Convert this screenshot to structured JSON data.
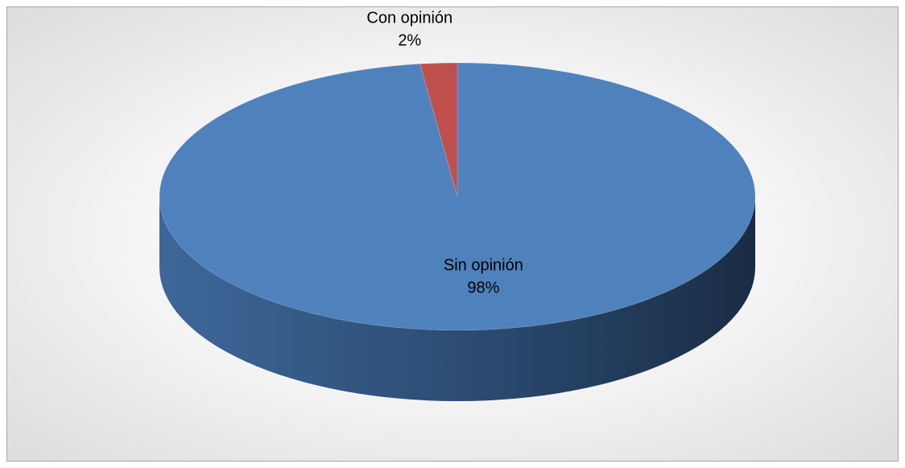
{
  "chart_data": {
    "type": "pie",
    "style": "3d",
    "title": "",
    "slices": [
      {
        "name": "Sin opinión",
        "percent_label": "98%",
        "value": 98,
        "color": "#4f81bd",
        "side_color": "#2c4d75"
      },
      {
        "name": "Con opinión",
        "percent_label": "2%",
        "value": 2,
        "color": "#c0504d",
        "side_color": "#8c3836"
      }
    ],
    "legend": "none",
    "data_labels": "category name and percentage"
  }
}
